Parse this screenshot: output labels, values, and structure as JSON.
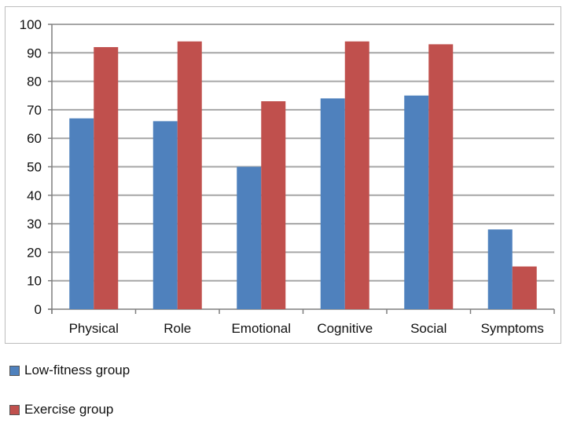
{
  "chart_data": {
    "type": "bar",
    "categories": [
      "Physical",
      "Role",
      "Emotional",
      "Cognitive",
      "Social",
      "Symptoms"
    ],
    "series": [
      {
        "name": "Low-fitness group",
        "values": [
          67,
          66,
          50,
          74,
          75,
          28
        ],
        "color": "#4f81bd"
      },
      {
        "name": "Exercise group",
        "values": [
          92,
          94,
          73,
          94,
          93,
          15
        ],
        "color": "#c0504d"
      }
    ],
    "ylim": [
      0,
      100
    ],
    "yticks": [
      0,
      10,
      20,
      30,
      40,
      50,
      60,
      70,
      80,
      90,
      100
    ],
    "grid": true,
    "legend_position": "bottom-left",
    "title": "",
    "xlabel": "",
    "ylabel": ""
  }
}
